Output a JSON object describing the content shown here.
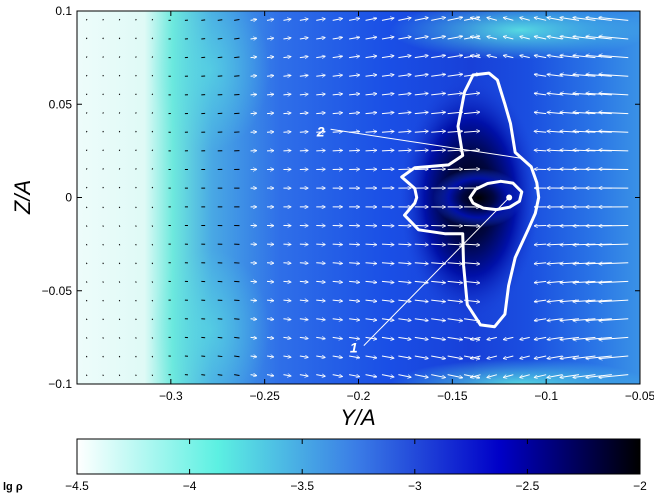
{
  "chart_data": {
    "type": "heatmap",
    "title": "",
    "xlabel": "Y/A",
    "ylabel": "Z/A",
    "xlim": [
      -0.35,
      -0.05
    ],
    "ylim": [
      -0.1,
      0.1
    ],
    "x_ticks": [
      -0.3,
      -0.25,
      -0.2,
      -0.15,
      -0.1,
      -0.05
    ],
    "x_tick_labels": [
      "−0.3",
      "−0.25",
      "−0.2",
      "−0.15",
      "−0.1",
      "−0.05"
    ],
    "y_ticks": [
      0.1,
      0.05,
      0,
      -0.05,
      -0.1
    ],
    "y_tick_labels": [
      "0.1",
      "0.05",
      "0",
      "−0.05",
      "−0.1"
    ],
    "colorbar": {
      "title": "lg ρ",
      "range": [
        -4.5,
        -2
      ],
      "ticks": [
        -4.5,
        -4,
        -3.5,
        -3,
        -2.5,
        -2
      ],
      "tick_labels": [
        "−4.5",
        "−4",
        "−3.5",
        "−3",
        "−2.5",
        "−2"
      ],
      "colors": [
        "#ffffff",
        "#5cf0e2",
        "#3a7be6",
        "#0000c8",
        "#000000"
      ]
    },
    "contours": [
      {
        "label": "1",
        "points": [
          [
            -0.1406,
            0.0
          ],
          [
            -0.1375,
            0.0045
          ],
          [
            -0.1312,
            0.0075
          ],
          [
            -0.1242,
            0.0087
          ],
          [
            -0.1177,
            0.0077
          ],
          [
            -0.113,
            0.003
          ],
          [
            -0.1142,
            -0.002
          ],
          [
            -0.1195,
            -0.0052
          ],
          [
            -0.1265,
            -0.0065
          ],
          [
            -0.1335,
            -0.0057
          ],
          [
            -0.139,
            -0.003
          ]
        ],
        "label_pos": [
          -0.2025,
          -0.0805
        ],
        "leader_end": [
          -0.1197,
          0.0
        ]
      },
      {
        "label": "2",
        "points": [
          [
            -0.1435,
            0.0565
          ],
          [
            -0.139,
            0.0657
          ],
          [
            -0.1305,
            0.0667
          ],
          [
            -0.126,
            0.063
          ],
          [
            -0.122,
            0.05
          ],
          [
            -0.119,
            0.0397
          ],
          [
            -0.1165,
            0.0242
          ],
          [
            -0.108,
            0.0165
          ],
          [
            -0.105,
            0.008
          ],
          [
            -0.104,
            0.0
          ],
          [
            -0.1058,
            -0.0085
          ],
          [
            -0.1095,
            -0.017
          ],
          [
            -0.1165,
            -0.0322
          ],
          [
            -0.12,
            -0.0473
          ],
          [
            -0.122,
            -0.0626
          ],
          [
            -0.1275,
            -0.0693
          ],
          [
            -0.135,
            -0.0683
          ],
          [
            -0.142,
            -0.0575
          ],
          [
            -0.144,
            -0.0365
          ],
          [
            -0.1445,
            -0.0194
          ],
          [
            -0.154,
            -0.0194
          ],
          [
            -0.168,
            -0.0173
          ],
          [
            -0.1755,
            -0.0095
          ],
          [
            -0.17,
            -0.003
          ],
          [
            -0.169,
            0.0
          ],
          [
            -0.17,
            0.0048
          ],
          [
            -0.177,
            0.011
          ],
          [
            -0.17,
            0.016
          ],
          [
            -0.152,
            0.0175
          ],
          [
            -0.1445,
            0.0225
          ],
          [
            -0.147,
            0.0382
          ]
        ],
        "label_pos": [
          -0.2202,
          0.0355
        ],
        "leader_end": [
          -0.113,
          0.021
        ]
      }
    ],
    "marker": {
      "x": -0.1197,
      "y": 0.0
    },
    "vector_field": "velocity arrows on a regular grid; near-zero left of Y/A ≈ -0.3, converging toward Y/A ≈ -0.13 with length growing with Y/A"
  }
}
